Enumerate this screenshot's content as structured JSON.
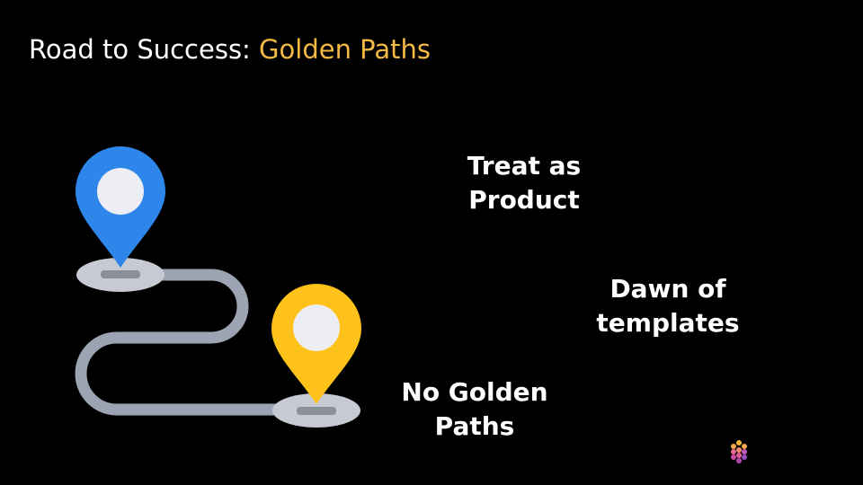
{
  "slide": {
    "title_prefix": "Road to Success: ",
    "title_accent": "Golden Paths",
    "colors": {
      "background": "#000000",
      "title": "#ffffff",
      "accent": "#f4b942",
      "pin_start": "#2f86ea",
      "pin_end": "#ffc21a",
      "road": "#9ca3b3",
      "pin_base": "#c7cad3"
    }
  },
  "milestones": [
    {
      "line1": "Treat as",
      "line2": "Product"
    },
    {
      "line1": "Dawn of",
      "line2": "templates"
    },
    {
      "line1": "No Golden",
      "line2": "Paths"
    }
  ],
  "icons": {
    "start_pin": "map-pin-icon",
    "end_pin": "map-pin-icon",
    "logo": "cube-logo-icon"
  }
}
